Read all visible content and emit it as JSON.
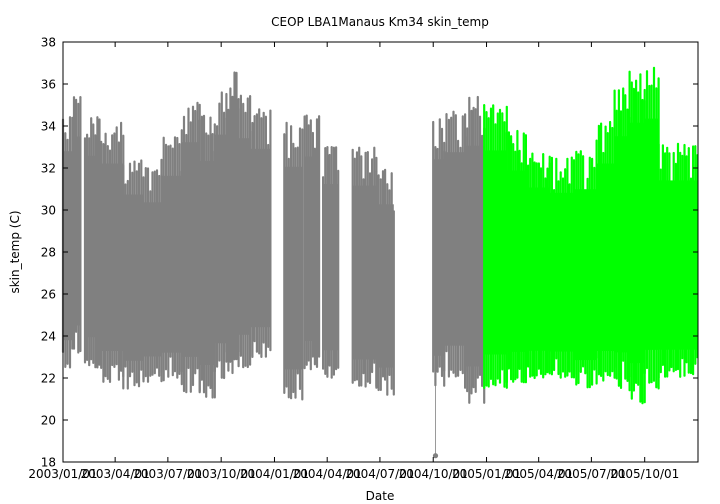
{
  "chart_data": {
    "type": "scatter",
    "title": "CEOP LBA1Manaus Km34  skin_temp",
    "xlabel": "Date",
    "ylabel": "skin_temp (C)",
    "xlim": [
      "2003-01-01",
      "2006-01-01"
    ],
    "ylim": [
      18,
      38
    ],
    "x_ticks": [
      "2003/01/01",
      "2003/04/01",
      "2003/07/01",
      "2003/10/01",
      "2004/01/01",
      "2004/04/01",
      "2004/07/01",
      "2004/10/01",
      "2005/01/01",
      "2005/04/01",
      "2005/07/01",
      "2005/10/01"
    ],
    "y_ticks": [
      18,
      20,
      22,
      24,
      26,
      28,
      30,
      32,
      34,
      36,
      38
    ],
    "grid": false,
    "legend": "none",
    "series": [
      {
        "color": "#808080",
        "segments": [
          {
            "start": "2003-01-01",
            "end": "2003-01-17",
            "low": 22.3,
            "high": 34.8
          },
          {
            "start": "2003-01-20",
            "end": "2003-01-31",
            "low": 23.0,
            "high": 35.5
          },
          {
            "start": "2003-02-08",
            "end": "2003-03-05",
            "low": 22.5,
            "high": 34.5
          },
          {
            "start": "2003-03-08",
            "end": "2003-04-15",
            "low": 21.8,
            "high": 34.2
          },
          {
            "start": "2003-04-15",
            "end": "2003-05-20",
            "low": 21.5,
            "high": 32.5
          },
          {
            "start": "2003-05-20",
            "end": "2003-06-20",
            "low": 21.8,
            "high": 32.0
          },
          {
            "start": "2003-06-20",
            "end": "2003-07-25",
            "low": 21.8,
            "high": 33.5
          },
          {
            "start": "2003-07-25",
            "end": "2003-08-25",
            "low": 21.3,
            "high": 35.5
          },
          {
            "start": "2003-08-25",
            "end": "2003-09-20",
            "low": 21.0,
            "high": 34.5
          },
          {
            "start": "2003-09-20",
            "end": "2003-10-10",
            "low": 22.0,
            "high": 35.8
          },
          {
            "start": "2003-10-10",
            "end": "2003-10-31",
            "low": 22.2,
            "high": 36.6
          },
          {
            "start": "2003-10-31",
            "end": "2003-11-20",
            "low": 22.5,
            "high": 35.5
          },
          {
            "start": "2003-11-20",
            "end": "2003-12-25",
            "low": 23.0,
            "high": 34.8
          },
          {
            "start": "2004-01-18",
            "end": "2004-02-18",
            "low": 20.8,
            "high": 34.2
          },
          {
            "start": "2004-02-22",
            "end": "2004-03-18",
            "low": 22.3,
            "high": 34.5
          },
          {
            "start": "2004-03-25",
            "end": "2004-04-20",
            "low": 22.0,
            "high": 33.0
          },
          {
            "start": "2004-05-15",
            "end": "2004-06-25",
            "low": 21.5,
            "high": 33.0
          },
          {
            "start": "2004-06-25",
            "end": "2004-07-25",
            "low": 21.2,
            "high": 32.0
          },
          {
            "start": "2004-10-01",
            "end": "2004-10-20",
            "low": 21.5,
            "high": 34.5
          },
          {
            "start": "2004-10-20",
            "end": "2004-11-25",
            "low": 22.0,
            "high": 34.8
          },
          {
            "start": "2004-11-25",
            "end": "2004-12-28",
            "low": 20.8,
            "high": 35.4
          }
        ],
        "outliers": [
          {
            "x": "2004-10-05",
            "y": 18.3
          }
        ]
      },
      {
        "color": "#00ff00",
        "segments": [
          {
            "start": "2004-12-28",
            "end": "2005-02-05",
            "low": 21.5,
            "high": 35.0
          },
          {
            "start": "2005-02-05",
            "end": "2005-03-10",
            "low": 21.8,
            "high": 33.8
          },
          {
            "start": "2005-03-10",
            "end": "2005-04-20",
            "low": 22.0,
            "high": 32.8
          },
          {
            "start": "2005-04-20",
            "end": "2005-06-01",
            "low": 22.0,
            "high": 32.5
          },
          {
            "start": "2005-06-01",
            "end": "2005-07-10",
            "low": 21.5,
            "high": 32.8
          },
          {
            "start": "2005-07-10",
            "end": "2005-08-10",
            "low": 21.8,
            "high": 34.2
          },
          {
            "start": "2005-08-10",
            "end": "2005-09-05",
            "low": 21.5,
            "high": 35.8
          },
          {
            "start": "2005-09-05",
            "end": "2005-10-01",
            "low": 20.8,
            "high": 36.7
          },
          {
            "start": "2005-10-01",
            "end": "2005-10-25",
            "low": 21.5,
            "high": 36.8
          },
          {
            "start": "2005-10-25",
            "end": "2005-12-31",
            "low": 22.0,
            "high": 33.2
          }
        ],
        "outliers": []
      }
    ]
  }
}
